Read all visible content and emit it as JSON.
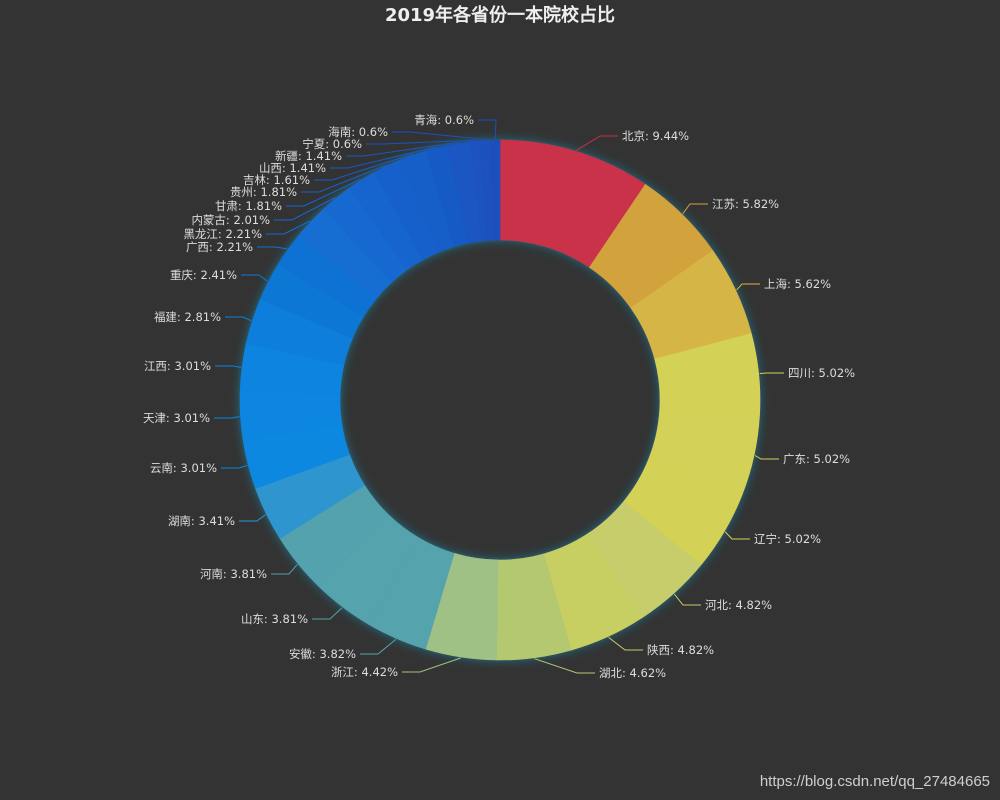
{
  "title": "2019年各省份一本院校占比",
  "watermark": "https://blog.csdn.net/qq_27484665",
  "chart_data": {
    "type": "pie",
    "subtype": "donut",
    "title": "2019年各省份一本院校占比",
    "label_format": "{name}: {percent}%",
    "center": [
      500,
      400
    ],
    "radius": [
      160,
      260
    ],
    "start_angle_deg": 90,
    "clockwise": true,
    "background": "#333333",
    "slices": [
      {
        "name": "北京",
        "percent": 9.44,
        "color": "#c9304a"
      },
      {
        "name": "江苏",
        "percent": 5.82,
        "color": "#d2a33e"
      },
      {
        "name": "上海",
        "percent": 5.62,
        "color": "#d6b546"
      },
      {
        "name": "四川",
        "percent": 5.02,
        "color": "#d3d157"
      },
      {
        "name": "广东",
        "percent": 5.02,
        "color": "#d4d158"
      },
      {
        "name": "辽宁",
        "percent": 5.02,
        "color": "#d3d156"
      },
      {
        "name": "河北",
        "percent": 4.82,
        "color": "#c6cd6b"
      },
      {
        "name": "陕西",
        "percent": 4.82,
        "color": "#c8cf62"
      },
      {
        "name": "湖北",
        "percent": 4.62,
        "color": "#b4c870"
      },
      {
        "name": "浙江",
        "percent": 4.42,
        "color": "#9fc185"
      },
      {
        "name": "安徽",
        "percent": 3.82,
        "color": "#55a4ad"
      },
      {
        "name": "山东",
        "percent": 3.81,
        "color": "#54a3ac"
      },
      {
        "name": "河南",
        "percent": 3.81,
        "color": "#52a2ad"
      },
      {
        "name": "湖南",
        "percent": 3.41,
        "color": "#2f95cf"
      },
      {
        "name": "云南",
        "percent": 3.01,
        "color": "#0a88e0"
      },
      {
        "name": "天津",
        "percent": 3.01,
        "color": "#0a86e2"
      },
      {
        "name": "江西",
        "percent": 3.01,
        "color": "#0b84e0"
      },
      {
        "name": "福建",
        "percent": 2.81,
        "color": "#0d7edc"
      },
      {
        "name": "重庆",
        "percent": 2.41,
        "color": "#0f77d6"
      },
      {
        "name": "广西",
        "percent": 2.21,
        "color": "#1172d4"
      },
      {
        "name": "黑龙江",
        "percent": 2.21,
        "color": "#136ed2"
      },
      {
        "name": "内蒙古",
        "percent": 2.01,
        "color": "#1469d0"
      },
      {
        "name": "甘肃",
        "percent": 1.81,
        "color": "#1665ce"
      },
      {
        "name": "贵州",
        "percent": 1.81,
        "color": "#1761cb"
      },
      {
        "name": "吉林",
        "percent": 1.61,
        "color": "#185ec8"
      },
      {
        "name": "山西",
        "percent": 1.41,
        "color": "#195ac6"
      },
      {
        "name": "新疆",
        "percent": 1.41,
        "color": "#1a57c3"
      },
      {
        "name": "宁夏",
        "percent": 0.6,
        "color": "#1b53c0"
      },
      {
        "name": "海南",
        "percent": 0.6,
        "color": "#1b51be"
      },
      {
        "name": "青海",
        "percent": 0.6,
        "color": "#1c4fbc"
      }
    ],
    "label_positions": {
      "北京": [
        622,
        136,
        "start"
      ],
      "江苏": [
        712,
        204,
        "start"
      ],
      "上海": [
        764,
        284,
        "start"
      ],
      "四川": [
        788,
        373,
        "start"
      ],
      "广东": [
        783,
        459,
        "start"
      ],
      "辽宁": [
        754,
        539,
        "start"
      ],
      "河北": [
        705,
        605,
        "start"
      ],
      "陕西": [
        647,
        650,
        "start"
      ],
      "湖北": [
        599,
        673,
        "start"
      ],
      "浙江": [
        398,
        672,
        "end"
      ],
      "安徽": [
        356,
        654,
        "end"
      ],
      "山东": [
        308,
        619,
        "end"
      ],
      "河南": [
        267,
        574,
        "end"
      ],
      "湖南": [
        235,
        521,
        "end"
      ],
      "云南": [
        217,
        468,
        "end"
      ],
      "天津": [
        210,
        418,
        "end"
      ],
      "江西": [
        211,
        366,
        "end"
      ],
      "福建": [
        221,
        317,
        "end"
      ],
      "重庆": [
        237,
        275,
        "end"
      ],
      "广西": [
        253,
        247,
        "end"
      ],
      "黑龙江": [
        262,
        234,
        "end"
      ],
      "内蒙古": [
        270,
        220,
        "end"
      ],
      "甘肃": [
        282,
        206,
        "end"
      ],
      "贵州": [
        297,
        192,
        "end"
      ],
      "吉林": [
        310,
        180,
        "end"
      ],
      "山西": [
        326,
        168,
        "end"
      ],
      "新疆": [
        342,
        156,
        "end"
      ],
      "宁夏": [
        362,
        144,
        "end"
      ],
      "海南": [
        388,
        132,
        "end"
      ],
      "青海": [
        474,
        120,
        "end"
      ]
    }
  }
}
